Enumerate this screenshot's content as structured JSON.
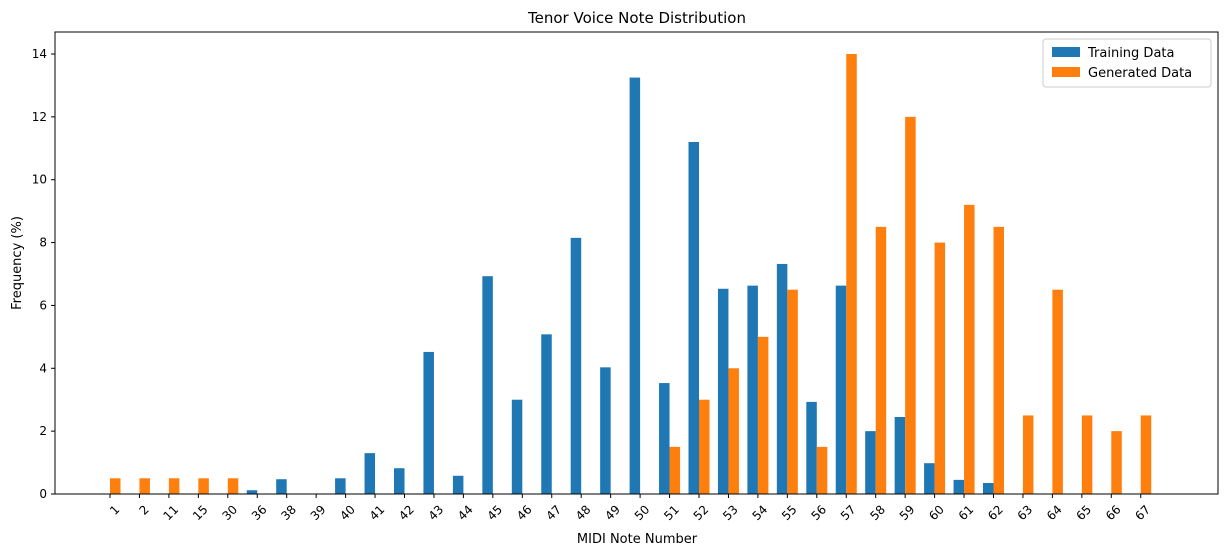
{
  "chart_data": {
    "type": "bar",
    "title": "Tenor Voice Note Distribution",
    "xlabel": "MIDI Note Number",
    "ylabel": "Frequency (%)",
    "ylim": [
      0,
      14.7
    ],
    "yticks": [
      0,
      2,
      4,
      6,
      8,
      10,
      12,
      14
    ],
    "grid": false,
    "legend_position": "top-right",
    "categories": [
      "1",
      "2",
      "11",
      "15",
      "30",
      "36",
      "38",
      "39",
      "40",
      "41",
      "42",
      "43",
      "44",
      "45",
      "46",
      "47",
      "48",
      "49",
      "50",
      "51",
      "52",
      "53",
      "54",
      "55",
      "56",
      "57",
      "58",
      "59",
      "60",
      "61",
      "62",
      "63",
      "64",
      "65",
      "66",
      "67"
    ],
    "series": [
      {
        "name": "Training Data",
        "color": "#1f77b4",
        "values": [
          0,
          0,
          0,
          0,
          0,
          0.12,
          0.47,
          0,
          0.5,
          1.3,
          0.82,
          4.52,
          0.58,
          6.93,
          3.0,
          5.08,
          8.15,
          4.03,
          13.25,
          3.53,
          11.2,
          6.53,
          6.63,
          7.32,
          2.93,
          6.63,
          2.0,
          2.45,
          0.98,
          0.45,
          0.35,
          0,
          0,
          0,
          0,
          0
        ]
      },
      {
        "name": "Generated Data",
        "color": "#ff7f0e",
        "values": [
          0.5,
          0.5,
          0.5,
          0.5,
          0.5,
          0,
          0,
          0,
          0,
          0,
          0,
          0,
          0,
          0,
          0,
          0,
          0,
          0,
          0,
          1.5,
          3.0,
          4.0,
          5.0,
          6.5,
          1.5,
          14.0,
          8.5,
          12.0,
          8.0,
          9.2,
          8.5,
          2.5,
          6.5,
          2.5,
          2.0,
          2.5
        ]
      }
    ]
  }
}
